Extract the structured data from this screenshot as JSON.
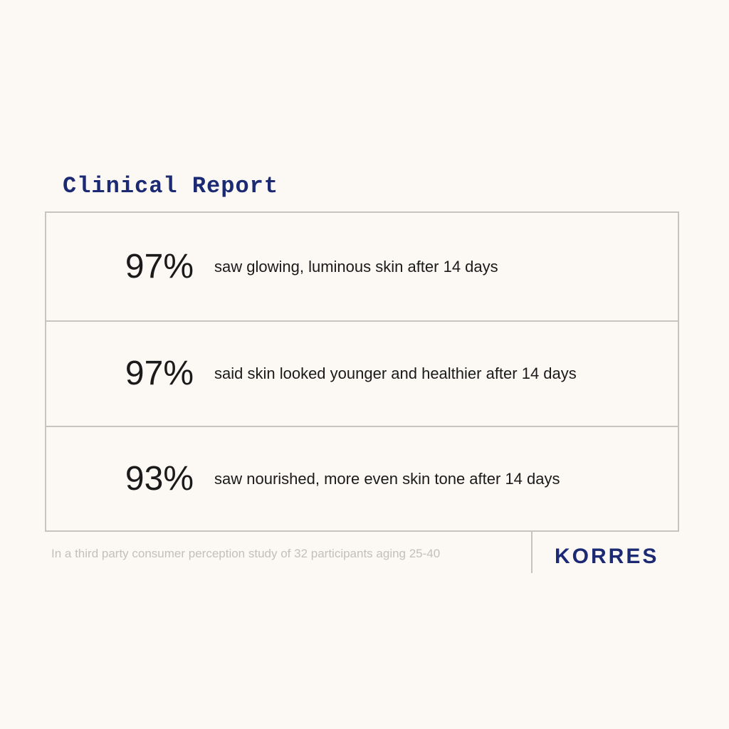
{
  "title": "Clinical Report",
  "stats": [
    {
      "value": "97%",
      "text": "saw glowing, luminous skin after 14 days"
    },
    {
      "value": "97%",
      "text": "said skin looked younger and healthier after 14 days"
    },
    {
      "value": "93%",
      "text": "saw nourished, more even skin tone after 14 days"
    }
  ],
  "footnote": "In a third party consumer perception study of 32 participants aging 25-40",
  "brand": "KORRES",
  "colors": {
    "background": "#fcf9f5",
    "accent": "#1c2a73",
    "border": "#c6c3c0",
    "footnote": "#c2bfbc"
  }
}
